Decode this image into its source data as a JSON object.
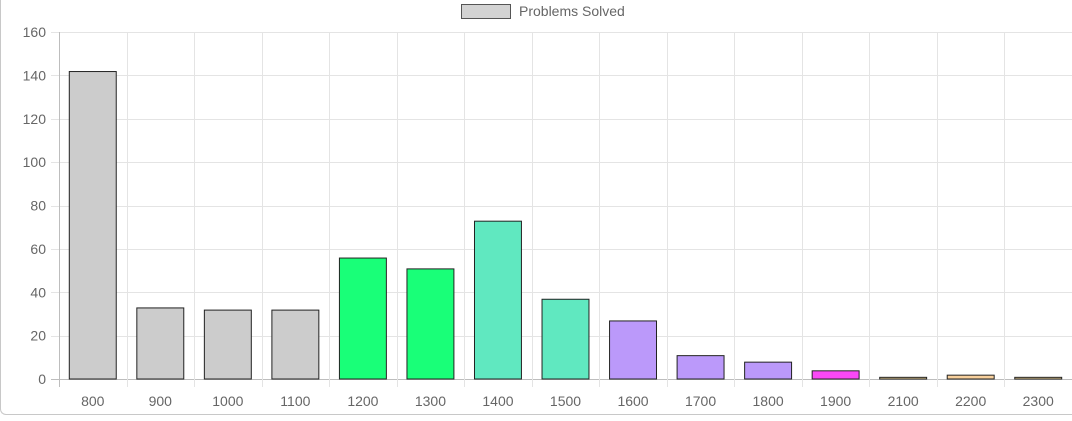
{
  "chart_data": {
    "type": "bar",
    "categories": [
      "800",
      "900",
      "1000",
      "1100",
      "1200",
      "1300",
      "1400",
      "1500",
      "1600",
      "1700",
      "1800",
      "1900",
      "2100",
      "2200",
      "2300"
    ],
    "series": [
      {
        "name": "Problems Solved",
        "values": [
          142,
          33,
          32,
          32,
          56,
          51,
          73,
          37,
          27,
          11,
          8,
          4,
          1,
          2,
          1
        ],
        "colors": [
          "#cccccc",
          "#cccccc",
          "#cccccc",
          "#cccccc",
          "#19ff78",
          "#19ff78",
          "#60e8c0",
          "#60e8c0",
          "#bb99fa",
          "#bb99fa",
          "#bb99fa",
          "#fa48f6",
          "#f8dc9c",
          "#f8d09c",
          "#f8dc9c"
        ],
        "border_color": "#222222"
      }
    ],
    "y_ticks": [
      "0",
      "20",
      "40",
      "60",
      "80",
      "100",
      "120",
      "140",
      "160"
    ],
    "ylim": [
      0,
      160
    ],
    "grid": true,
    "legend": {
      "placement": "top-center",
      "swatch_color": "#d3d3d3",
      "label": "Problems Solved"
    }
  }
}
